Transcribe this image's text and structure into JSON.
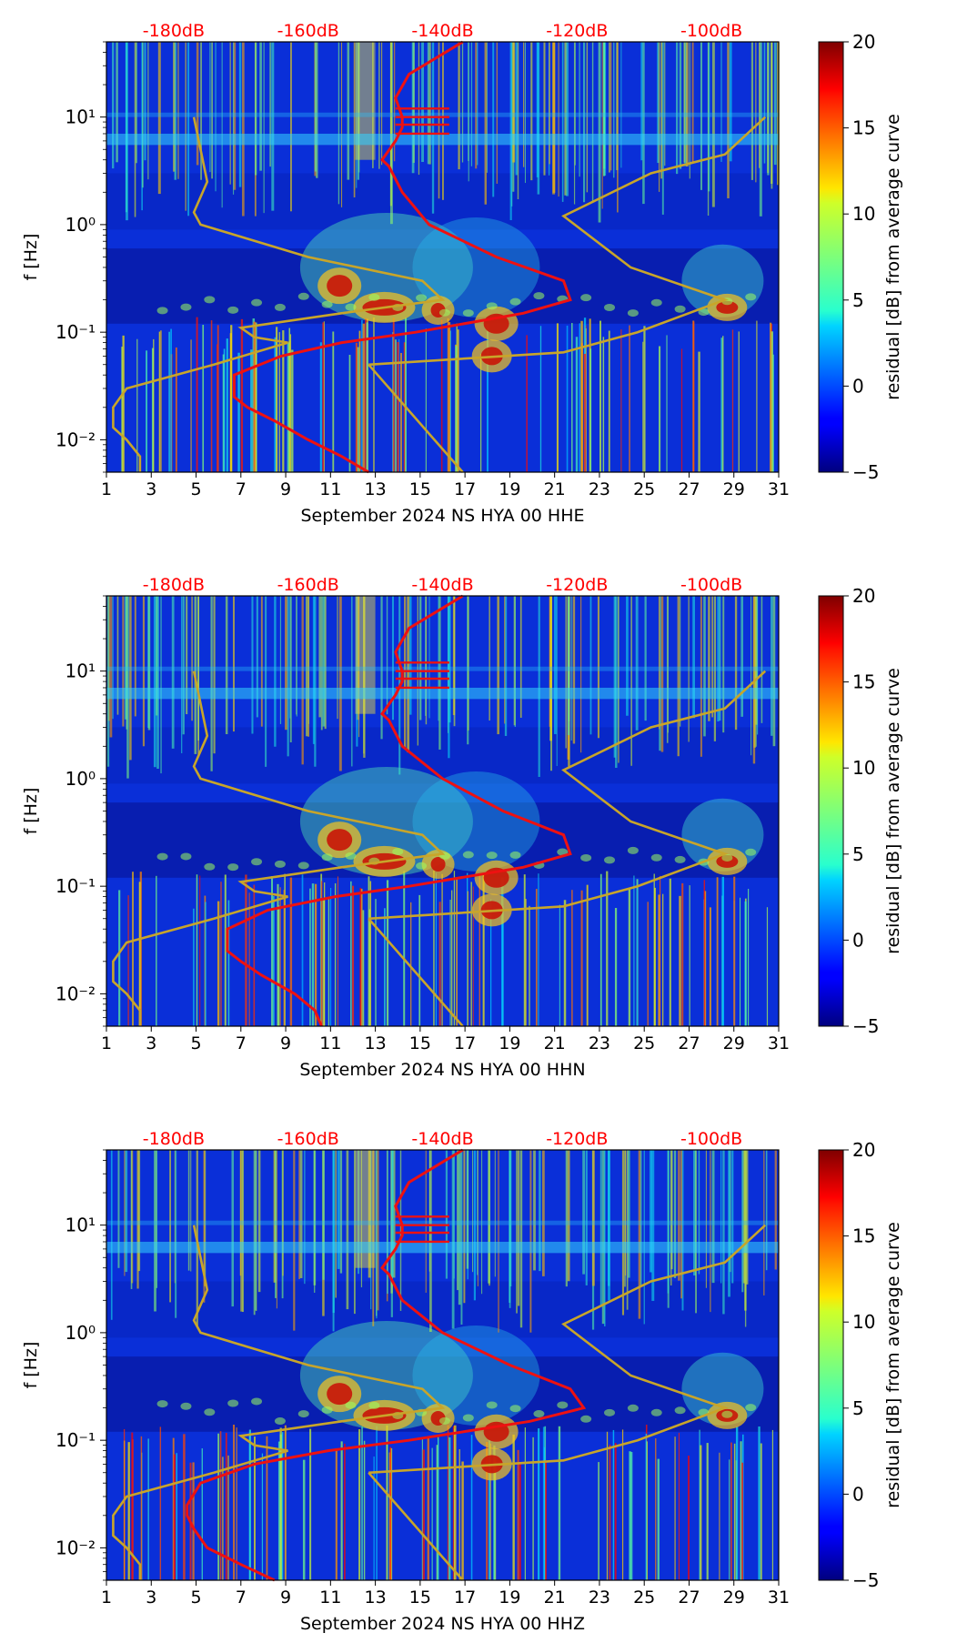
{
  "colors": {
    "power_axis": "#ff0000",
    "average_curve": "#ee1111",
    "noise_model": "#c8a52a"
  },
  "colorbar": {
    "label": "residual [dB] from average curve",
    "ticks": [
      "−5",
      "0",
      "5",
      "10",
      "15",
      "20"
    ],
    "range": [
      -5,
      20
    ],
    "colormap": "jet"
  },
  "chart_data": [
    {
      "type": "heatmap",
      "xlabel": "September 2024 NS HYA 00 HHE",
      "ylabel": "f [Hz]",
      "x_ticks": [
        "1",
        "3",
        "5",
        "7",
        "9",
        "11",
        "13",
        "15",
        "17",
        "19",
        "21",
        "23",
        "25",
        "27",
        "29",
        "31"
      ],
      "xlim": [
        1,
        31
      ],
      "ylim_hz": [
        0.005,
        50
      ],
      "y_scale": "log",
      "y_ticks": [
        "10⁻²",
        "10⁻¹",
        "10⁰",
        "10¹"
      ],
      "top_ticks": [
        "-180dB",
        "-160dB",
        "-140dB",
        "-120dB",
        "-100dB"
      ],
      "top_range_db": [
        -190,
        -90
      ],
      "average_curve": {
        "f": [
          50,
          25,
          15,
          10,
          8,
          6,
          4,
          3.5,
          2,
          1,
          0.5,
          0.3,
          0.2,
          0.15,
          0.1,
          0.08,
          0.06,
          0.04,
          0.025,
          0.02,
          0.015,
          0.01,
          0.007,
          0.005
        ],
        "db": [
          -137,
          -145,
          -147,
          -146,
          -146,
          -147,
          -149,
          -148,
          -146,
          -142,
          -132,
          -122,
          -121,
          -128,
          -144,
          -155,
          -164,
          -171,
          -171,
          -169,
          -165,
          -160,
          -155,
          -151
        ]
      },
      "noise_model": {
        "f": [
          0.005,
          0.007,
          0.01,
          0.013,
          0.02,
          0.03,
          0.05,
          0.08,
          0.09,
          0.11,
          0.15,
          0.2,
          0.3,
          0.5,
          1,
          1.3,
          2.5,
          10
        ],
        "db": [
          -185,
          -185,
          -187,
          -189,
          -189,
          -187,
          -174,
          -163,
          -168,
          -170,
          -155,
          -140,
          -143,
          -160,
          -176,
          -177,
          -175,
          -177
        ]
      },
      "noise_model_high": {
        "f": [
          0.05,
          0.065,
          0.1,
          0.2,
          0.4,
          1.2,
          3,
          4.5,
          10
        ],
        "db": [
          -151,
          -122,
          -111,
          -98,
          -112,
          -122,
          -109,
          -98,
          -92
        ]
      },
      "noise_model_low_branch": {
        "f": [
          0.005,
          0.05
        ],
        "db": [
          -137,
          -151
        ]
      }
    },
    {
      "type": "heatmap",
      "xlabel": "September 2024 NS HYA 00 HHN",
      "ylabel": "f [Hz]",
      "x_ticks": [
        "1",
        "3",
        "5",
        "7",
        "9",
        "11",
        "13",
        "15",
        "17",
        "19",
        "21",
        "23",
        "25",
        "27",
        "29",
        "31"
      ],
      "xlim": [
        1,
        31
      ],
      "ylim_hz": [
        0.005,
        50
      ],
      "y_scale": "log",
      "y_ticks": [
        "10⁻²",
        "10⁻¹",
        "10⁰",
        "10¹"
      ],
      "top_ticks": [
        "-180dB",
        "-160dB",
        "-140dB",
        "-120dB",
        "-100dB"
      ],
      "top_range_db": [
        -190,
        -90
      ],
      "average_curve": {
        "f": [
          50,
          25,
          15,
          10,
          8,
          6,
          4,
          3.5,
          2,
          1,
          0.5,
          0.3,
          0.2,
          0.15,
          0.1,
          0.08,
          0.06,
          0.04,
          0.025,
          0.02,
          0.015,
          0.01,
          0.007,
          0.005
        ],
        "db": [
          -137,
          -145,
          -147,
          -146,
          -146,
          -147,
          -149,
          -148,
          -146,
          -140,
          -131,
          -122,
          -121,
          -128,
          -145,
          -156,
          -166,
          -172,
          -172,
          -170,
          -167,
          -162,
          -159,
          -158
        ]
      },
      "noise_model": {
        "f": [
          0.005,
          0.007,
          0.01,
          0.013,
          0.02,
          0.03,
          0.05,
          0.08,
          0.09,
          0.11,
          0.15,
          0.2,
          0.3,
          0.5,
          1,
          1.3,
          2.5,
          10
        ],
        "db": [
          -185,
          -185,
          -187,
          -189,
          -189,
          -187,
          -174,
          -163,
          -168,
          -170,
          -155,
          -140,
          -143,
          -160,
          -176,
          -177,
          -175,
          -177
        ]
      },
      "noise_model_high": {
        "f": [
          0.05,
          0.065,
          0.1,
          0.2,
          0.4,
          1.2,
          3,
          4.5,
          10
        ],
        "db": [
          -151,
          -122,
          -111,
          -98,
          -112,
          -122,
          -109,
          -98,
          -92
        ]
      },
      "noise_model_low_branch": {
        "f": [
          0.005,
          0.05
        ],
        "db": [
          -137,
          -151
        ]
      }
    },
    {
      "type": "heatmap",
      "xlabel": "September 2024 NS HYA 00 HHZ",
      "ylabel": "f [Hz]",
      "x_ticks": [
        "1",
        "3",
        "5",
        "7",
        "9",
        "11",
        "13",
        "15",
        "17",
        "19",
        "21",
        "23",
        "25",
        "27",
        "29",
        "31"
      ],
      "xlim": [
        1,
        31
      ],
      "ylim_hz": [
        0.005,
        50
      ],
      "y_scale": "log",
      "y_ticks": [
        "10⁻²",
        "10⁻¹",
        "10⁰",
        "10¹"
      ],
      "top_ticks": [
        "-180dB",
        "-160dB",
        "-140dB",
        "-120dB",
        "-100dB"
      ],
      "top_range_db": [
        -190,
        -90
      ],
      "average_curve": {
        "f": [
          50,
          25,
          15,
          10,
          8,
          6,
          4,
          3.5,
          2,
          1,
          0.5,
          0.3,
          0.2,
          0.15,
          0.1,
          0.08,
          0.06,
          0.04,
          0.025,
          0.02,
          0.015,
          0.01,
          0.007,
          0.005
        ],
        "db": [
          -137,
          -145,
          -147,
          -146,
          -146,
          -147,
          -149,
          -148,
          -146,
          -140,
          -130,
          -121,
          -119,
          -127,
          -145,
          -157,
          -168,
          -176,
          -178,
          -178,
          -177,
          -175,
          -170,
          -165
        ]
      },
      "noise_model": {
        "f": [
          0.005,
          0.007,
          0.01,
          0.013,
          0.02,
          0.03,
          0.05,
          0.08,
          0.09,
          0.11,
          0.15,
          0.2,
          0.3,
          0.5,
          1,
          1.3,
          2.5,
          10
        ],
        "db": [
          -185,
          -185,
          -187,
          -189,
          -189,
          -187,
          -174,
          -163,
          -168,
          -170,
          -155,
          -140,
          -143,
          -160,
          -176,
          -177,
          -175,
          -177
        ]
      },
      "noise_model_high": {
        "f": [
          0.05,
          0.065,
          0.1,
          0.2,
          0.4,
          1.2,
          3,
          4.5,
          10
        ],
        "db": [
          -151,
          -122,
          -111,
          -98,
          -112,
          -122,
          -109,
          -98,
          -92
        ]
      },
      "noise_model_low_branch": {
        "f": [
          0.005,
          0.05
        ],
        "db": [
          -137,
          -151
        ]
      }
    }
  ]
}
